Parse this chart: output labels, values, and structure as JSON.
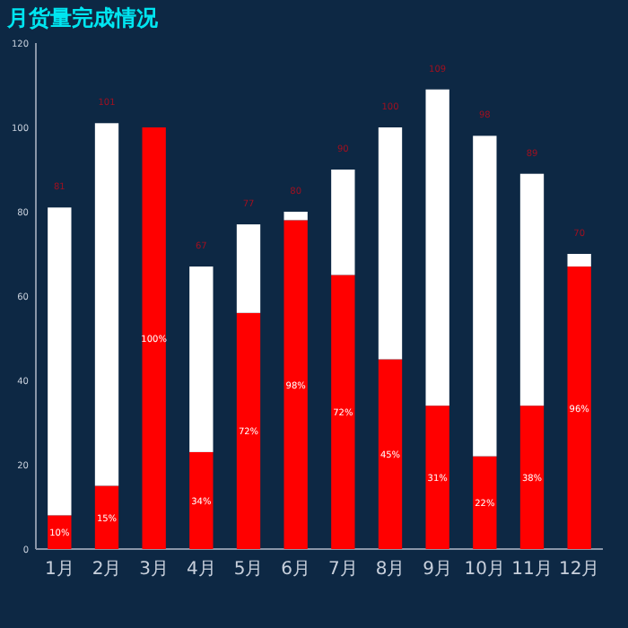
{
  "chart_data": {
    "type": "bar",
    "title": "月货量完成情况",
    "categories": [
      "1月",
      "2月",
      "3月",
      "4月",
      "5月",
      "6月",
      "7月",
      "8月",
      "9月",
      "10月",
      "11月",
      "12月"
    ],
    "stacked": true,
    "series": [
      {
        "color": "#ff0000",
        "values": [
          8,
          15,
          100,
          23,
          56,
          78,
          65,
          45,
          34,
          22,
          34,
          67
        ]
      },
      {
        "color": "#ffffff",
        "values": [
          73,
          86,
          0,
          44,
          21,
          2,
          25,
          55,
          75,
          76,
          55,
          3
        ]
      }
    ],
    "annotations": [
      "10%",
      "15%",
      "100%",
      "34%",
      "72%",
      "98%",
      "72%",
      "45%",
      "31%",
      "22%",
      "38%",
      "96%"
    ],
    "totals": [
      "81",
      "101",
      null,
      "67",
      "77",
      "80",
      "90",
      "100",
      "109",
      "98",
      "89",
      "70"
    ],
    "ylim": [
      0,
      120
    ],
    "yticks": [
      0,
      20,
      40,
      60,
      80,
      100,
      120
    ]
  }
}
